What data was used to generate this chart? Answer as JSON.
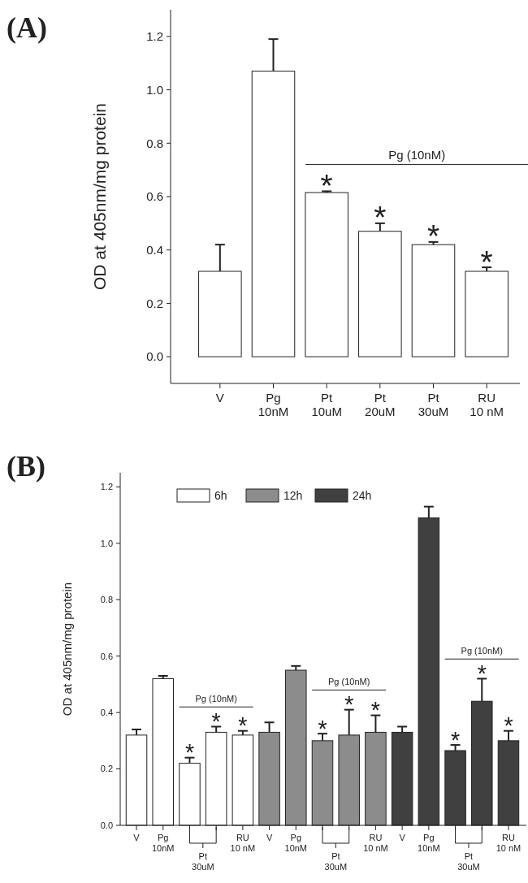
{
  "chart_data": [
    {
      "type": "bar",
      "title": "(A)",
      "ylabel": "OD at 405nm/mg protein",
      "categories": [
        "V",
        "Pg\n10nM",
        "Pt\n10uM",
        "Pt\n20uM",
        "Pt\n30uM",
        "RU\n10 nM"
      ],
      "values": [
        0.32,
        1.07,
        0.615,
        0.47,
        0.42,
        0.32
      ],
      "errors": [
        0.1,
        0.12,
        0.005,
        0.03,
        0.01,
        0.015
      ],
      "value_labels": [
        null,
        null,
        "*",
        "*",
        "*",
        "*"
      ],
      "color": "#ffffff",
      "ylim": [
        -0.1,
        1.3
      ],
      "yticks": [
        {
          "value": 0,
          "label": "0.0"
        },
        {
          "value": 0.2,
          "label": "0.2"
        },
        {
          "value": 0.4,
          "label": "0.4"
        },
        {
          "value": 0.6,
          "label": "0.6"
        },
        {
          "value": 0.8,
          "label": "0.8"
        },
        {
          "value": 1,
          "label": "1.0"
        },
        {
          "value": 1.2,
          "label": "1.2"
        }
      ],
      "annotations": [
        "Pg (10nM)"
      ],
      "grid": false
    },
    {
      "type": "bar",
      "title": "(B)",
      "ylabel": "OD at 405nm/mg protein",
      "categories": [
        "V",
        "Pg\n10nM",
        null,
        null,
        "RU\n10 nM",
        "V",
        "Pg\n10nM",
        null,
        null,
        "RU\n10 nM",
        "V",
        "Pg\n10nM",
        null,
        null,
        "RU\n10 nM"
      ],
      "series": [
        {
          "name": "6h",
          "color": "#ffffff",
          "values": [
            0.32,
            0.52,
            0.22,
            0.33,
            0.32,
            null,
            null,
            null,
            null,
            null,
            null,
            null,
            null,
            null,
            null
          ],
          "errors": [
            0.02,
            0.01,
            0.02,
            0.02,
            0.015,
            null,
            null,
            null,
            null,
            null,
            null,
            null,
            null,
            null,
            null
          ],
          "value_labels": [
            null,
            null,
            "*",
            "*",
            "*",
            null,
            null,
            null,
            null,
            null,
            null,
            null,
            null,
            null,
            null
          ]
        },
        {
          "name": "12h",
          "color": "#8c8c8c",
          "values": [
            null,
            null,
            null,
            null,
            null,
            0.33,
            0.55,
            0.3,
            0.32,
            0.33,
            null,
            null,
            null,
            null,
            null
          ],
          "errors": [
            null,
            null,
            null,
            null,
            null,
            0.035,
            0.015,
            0.025,
            0.09,
            0.06,
            null,
            null,
            null,
            null,
            null
          ],
          "value_labels": [
            null,
            null,
            null,
            null,
            null,
            null,
            null,
            "*",
            "*",
            "*",
            null,
            null,
            null,
            null,
            null
          ]
        },
        {
          "name": "24h",
          "color": "#404040",
          "values": [
            null,
            null,
            null,
            null,
            null,
            null,
            null,
            null,
            null,
            null,
            0.33,
            1.09,
            0.265,
            0.44,
            0.3
          ],
          "errors": [
            null,
            null,
            null,
            null,
            null,
            null,
            null,
            null,
            null,
            null,
            0.02,
            0.04,
            0.02,
            0.08,
            0.035
          ],
          "value_labels": [
            null,
            null,
            null,
            null,
            null,
            null,
            null,
            null,
            null,
            null,
            null,
            null,
            "*",
            "*",
            "*"
          ]
        }
      ],
      "ylim": [
        0,
        1.25
      ],
      "yticks": [
        {
          "value": 0,
          "label": "0.0"
        },
        {
          "value": 0.2,
          "label": "0.2"
        },
        {
          "value": 0.4,
          "label": "0.4"
        },
        {
          "value": 0.6,
          "label": "0.6"
        },
        {
          "value": 0.8,
          "label": "0.8"
        },
        {
          "value": 1,
          "label": "1.0"
        },
        {
          "value": 1.2,
          "label": "1.2"
        }
      ],
      "annotations": [
        "Pg (10nM)",
        "Pg (10nM)",
        "Pg (10nM)",
        "Pt\n30uM",
        "Pt\n30uM",
        "Pt\n30uM"
      ],
      "legend": "top",
      "grid": false
    }
  ]
}
